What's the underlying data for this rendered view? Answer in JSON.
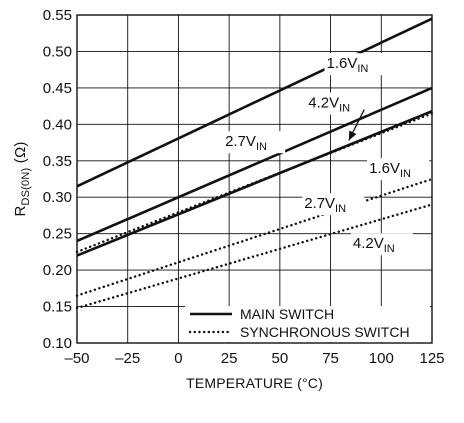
{
  "chart_data": {
    "type": "line",
    "xlabel": "TEMPERATURE (°C)",
    "ylabel": {
      "main": "R",
      "sub": "DS(0N)",
      "unit": " (Ω)"
    },
    "xlim": [
      -50,
      125
    ],
    "ylim": [
      0.1,
      0.55
    ],
    "xticks": [
      -50,
      -25,
      0,
      25,
      50,
      75,
      100,
      125
    ],
    "xtick_labels": [
      "–50",
      "–25",
      "0",
      "25",
      "50",
      "75",
      "100",
      "125"
    ],
    "yticks": [
      0.1,
      0.15,
      0.2,
      0.25,
      0.3,
      0.35,
      0.4,
      0.45,
      0.5,
      0.55
    ],
    "ytick_labels": [
      "0.10",
      "0.15",
      "0.20",
      "0.25",
      "0.30",
      "0.35",
      "0.40",
      "0.45",
      "0.50",
      "0.55"
    ],
    "grid": true,
    "series": [
      {
        "name": "MAIN SWITCH 1.6VIN",
        "group": "main",
        "style": "solid",
        "x": [
          -50,
          125
        ],
        "y": [
          0.315,
          0.545
        ]
      },
      {
        "name": "MAIN SWITCH 2.7VIN",
        "group": "main",
        "style": "solid",
        "x": [
          -50,
          125
        ],
        "y": [
          0.24,
          0.45
        ]
      },
      {
        "name": "MAIN SWITCH 4.2VIN",
        "group": "main",
        "style": "solid",
        "x": [
          -50,
          125
        ],
        "y": [
          0.22,
          0.418
        ]
      },
      {
        "name": "SYNCHRONOUS SWITCH 1.6VIN",
        "group": "sync",
        "style": "dotted",
        "x": [
          -50,
          125
        ],
        "y": [
          0.225,
          0.415
        ]
      },
      {
        "name": "SYNCHRONOUS SWITCH 2.7VIN",
        "group": "sync",
        "style": "dotted",
        "x": [
          -50,
          125
        ],
        "y": [
          0.165,
          0.325
        ]
      },
      {
        "name": "SYNCHRONOUS SWITCH 4.2VIN",
        "group": "sync",
        "style": "dotted",
        "x": [
          -50,
          125
        ],
        "y": [
          0.148,
          0.29
        ]
      }
    ],
    "annotations": [
      {
        "id": "m16",
        "main": "1.6V",
        "sub": "IN",
        "x": 73,
        "y": 0.477
      },
      {
        "id": "m42",
        "main": "4.2V",
        "sub": "IN",
        "x": 64,
        "y": 0.423
      },
      {
        "id": "m27",
        "main": "2.7V",
        "sub": "IN",
        "x": 23,
        "y": 0.37
      },
      {
        "id": "s16",
        "main": "1.6V",
        "sub": "IN",
        "x": 94,
        "y": 0.333
      },
      {
        "id": "s27",
        "main": "2.7V",
        "sub": "IN",
        "x": 62,
        "y": 0.285
      },
      {
        "id": "s42",
        "main": "4.2V",
        "sub": "IN",
        "x": 86,
        "y": 0.23
      }
    ],
    "legend": {
      "position": "bottom-right",
      "entries": [
        {
          "label": "MAIN SWITCH",
          "style": "solid"
        },
        {
          "label": "SYNCHRONOUS SWITCH",
          "style": "dotted"
        }
      ]
    }
  }
}
